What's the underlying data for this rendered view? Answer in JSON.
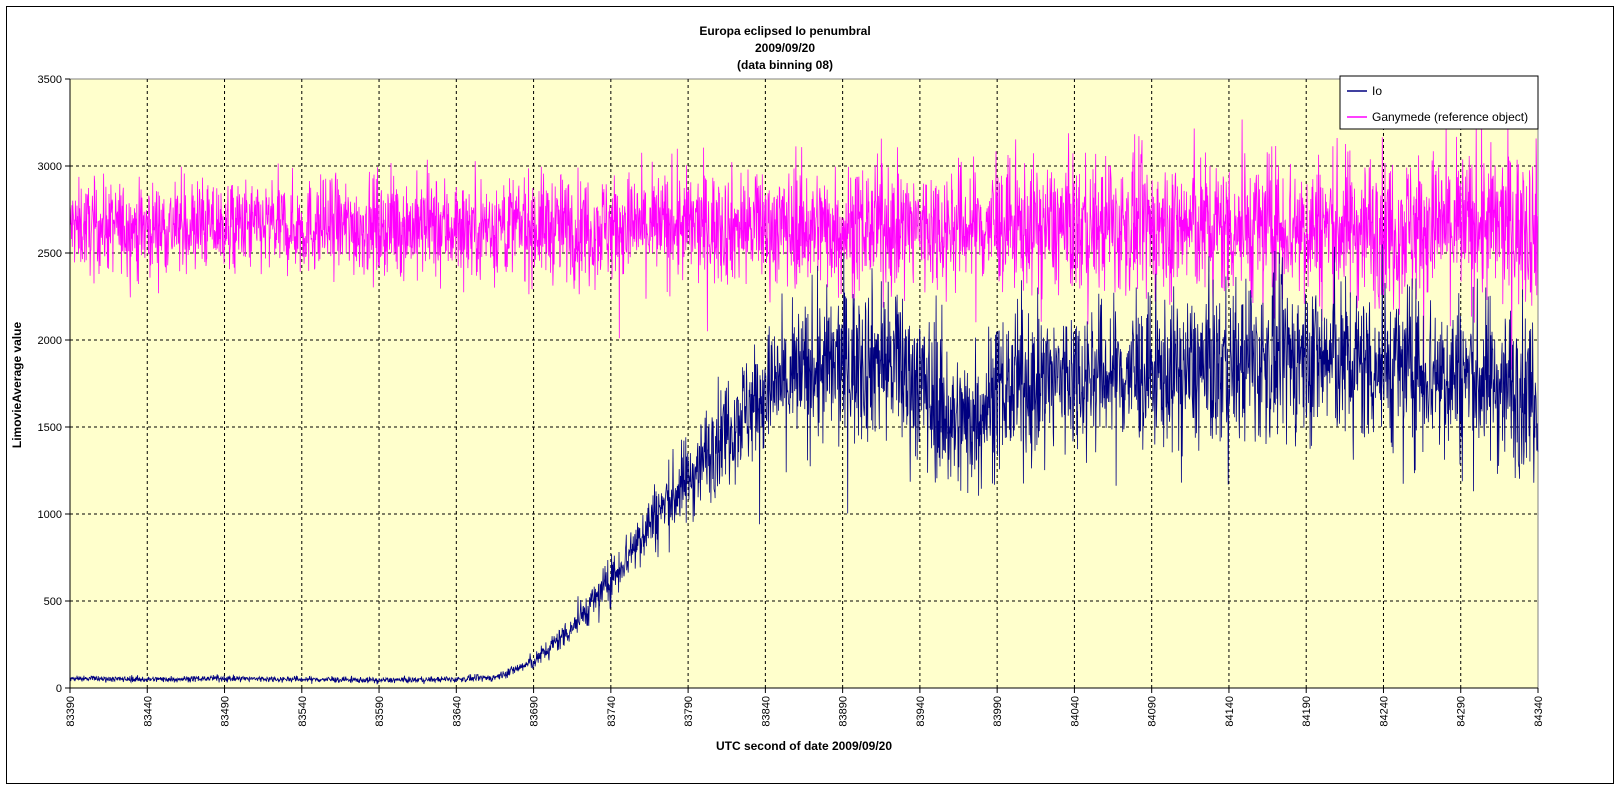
{
  "chart_data": {
    "type": "line",
    "title_lines": [
      "Europa eclipsed Io penumbral",
      "2009/09/20",
      "(data binning 08)"
    ],
    "xlabel": "UTC second of date 2009/09/20",
    "ylabel": "LimovieAverage value",
    "xlim": [
      83390,
      84340
    ],
    "ylim": [
      0,
      3500
    ],
    "x_ticks": [
      "83390",
      "83440",
      "83490",
      "83540",
      "83590",
      "83640",
      "83690",
      "83740",
      "83790",
      "83840",
      "83890",
      "83940",
      "83990",
      "84040",
      "84090",
      "84140",
      "84190",
      "84240",
      "84290",
      "84340"
    ],
    "y_ticks": [
      "0",
      "500",
      "1000",
      "1500",
      "2000",
      "2500",
      "3000",
      "3500"
    ],
    "grid": true,
    "legend_position": "top-right",
    "plot_background": "#ffffcc",
    "series": [
      {
        "name": "Io",
        "color": "#000080",
        "x": [
          83390,
          83440,
          83490,
          83540,
          83590,
          83640,
          83665,
          83690,
          83715,
          83740,
          83765,
          83790,
          83815,
          83840,
          83865,
          83890,
          83915,
          83940,
          83965,
          83990,
          84040,
          84090,
          84140,
          84190,
          84240,
          84290,
          84340
        ],
        "y": [
          55,
          50,
          55,
          50,
          45,
          50,
          60,
          150,
          350,
          620,
          950,
          1200,
          1500,
          1700,
          1800,
          1850,
          1900,
          1750,
          1500,
          1700,
          1800,
          1800,
          1850,
          1900,
          1850,
          1800,
          1700
        ],
        "noise": [
          12,
          12,
          12,
          12,
          12,
          12,
          15,
          30,
          60,
          90,
          130,
          180,
          220,
          260,
          300,
          330,
          330,
          330,
          300,
          300,
          300,
          300,
          330,
          330,
          330,
          340,
          340
        ]
      },
      {
        "name": "Ganymede (reference object)",
        "color": "#ff00ff",
        "x": [
          83390,
          83590,
          83790,
          83990,
          84190,
          84340
        ],
        "y": [
          2650,
          2650,
          2650,
          2650,
          2650,
          2650
        ],
        "noise": [
          180,
          200,
          230,
          260,
          300,
          320
        ]
      }
    ]
  }
}
